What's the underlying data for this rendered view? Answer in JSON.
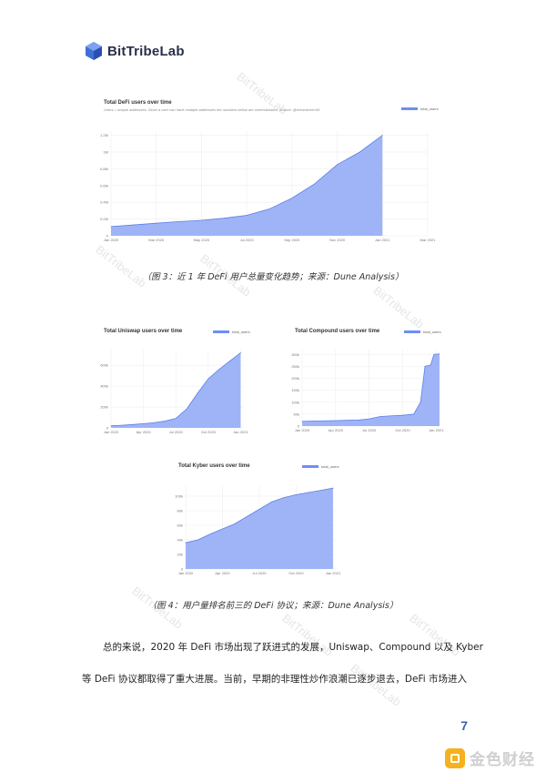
{
  "header": {
    "logo_text": "BitTribeLab"
  },
  "watermark": {
    "text": "BitTribeLab"
  },
  "figure3": {
    "caption": "（图 3：近 1 年 DeFi 用户总量变化趋势；来源：Dune Analysis）"
  },
  "figure4": {
    "caption": "（图 4：用户量排名前三的 DeFi 协议；来源：Dune Analysis）"
  },
  "body_text": {
    "line1": "总的来说，2020 年 DeFi 市场出现了跃进式的发展，Uniswap、Compound 以及 Kyber",
    "line2": "等 DeFi 协议都取得了重大进展。当前，早期的非理性炒作浪潮已逐步退去，DeFi 市场进入"
  },
  "page_number": "7",
  "footer_brand": {
    "text": "金色财经"
  },
  "colors": {
    "area_fill": "#9fb4f7",
    "area_line": "#5b7fe8",
    "grid": "#eeeeee"
  },
  "chart_data": [
    {
      "type": "area",
      "title": "Total DeFi users over time",
      "subtitle": "Users = unique addresses. Since a user can have multiple addresses the numbers below are overestimates. Source: @richardchen39",
      "legend": "total_users",
      "x": [
        "Jan 2020",
        "Feb 2020",
        "Mar 2020",
        "Apr 2020",
        "May 2020",
        "Jun 2020",
        "Jul 2020",
        "Aug 2020",
        "Sep 2020",
        "Oct 2020",
        "Nov 2020",
        "Dec 2020",
        "Jan 2021"
      ],
      "values": [
        110000,
        130000,
        150000,
        170000,
        185000,
        210000,
        245000,
        320000,
        450000,
        620000,
        850000,
        1000000,
        1200000
      ],
      "x_ticks": [
        "Jan 2020",
        "Mar 2020",
        "May 2020",
        "Jul 2020",
        "Sep 2020",
        "Nov 2020",
        "Jan 2021",
        "Mar 2021"
      ],
      "y_ticks": [
        "0",
        "0.2M",
        "0.4M",
        "0.6M",
        "0.8M",
        "1M",
        "1.2M"
      ],
      "ylim": [
        0,
        1250000
      ],
      "xlim_months": [
        0,
        14
      ]
    },
    {
      "type": "area",
      "title": "Total Uniswap users over time",
      "legend": "total_users",
      "x": [
        "Jan 2020",
        "Feb 2020",
        "Mar 2020",
        "Apr 2020",
        "May 2020",
        "Jun 2020",
        "Jul 2020",
        "Aug 2020",
        "Sep 2020",
        "Oct 2020",
        "Nov 2020",
        "Dec 2020",
        "Jan 2021"
      ],
      "values": [
        20000,
        25000,
        32000,
        40000,
        50000,
        65000,
        90000,
        180000,
        330000,
        470000,
        560000,
        640000,
        720000
      ],
      "x_ticks": [
        "Jan 2020",
        "Apr 2020",
        "Jul 2020",
        "Oct 2020",
        "Jan 2021"
      ],
      "y_ticks": [
        "0",
        "200k",
        "400k",
        "600k"
      ],
      "ylim": [
        0,
        750000
      ],
      "xlim_months": [
        0,
        12.3
      ]
    },
    {
      "type": "area",
      "title": "Total Compound users over time",
      "legend": "total_users",
      "x": [
        "Jan 2020",
        "Feb 2020",
        "Mar 2020",
        "Apr 2020",
        "May 2020",
        "Jun 2020",
        "Jul 2020",
        "Aug 2020",
        "Sep 2020",
        "Oct 2020",
        "Oct 2020",
        "Nov 2020",
        "Nov 2020",
        "Dec 2020",
        "Dec 2020",
        "Jan 2021"
      ],
      "values": [
        20000,
        21000,
        22000,
        23000,
        24000,
        25000,
        30000,
        40000,
        43000,
        45000,
        50000,
        100000,
        250000,
        255000,
        300000,
        302000
      ],
      "months": [
        0,
        1,
        2,
        3,
        4,
        5,
        6,
        7,
        8,
        9,
        10,
        10.6,
        11,
        11.5,
        11.8,
        12.3
      ],
      "x_ticks": [
        "Jan 2020",
        "Apr 2020",
        "Jul 2020",
        "Oct 2020",
        "Jan 2021"
      ],
      "y_ticks": [
        "0",
        "50k",
        "100k",
        "150k",
        "200k",
        "250k",
        "300k"
      ],
      "ylim": [
        0,
        320000
      ],
      "xlim_months": [
        0,
        12.3
      ]
    },
    {
      "type": "area",
      "title": "Total Kyber users over time",
      "legend": "total_users",
      "x": [
        "Jan 2020",
        "Feb 2020",
        "Mar 2020",
        "Apr 2020",
        "May 2020",
        "Jun 2020",
        "Jul 2020",
        "Aug 2020",
        "Sep 2020",
        "Oct 2020",
        "Nov 2020",
        "Dec 2020",
        "Jan 2021"
      ],
      "values": [
        36000,
        40000,
        48000,
        55000,
        62000,
        72000,
        82000,
        92000,
        98000,
        102000,
        105000,
        108000,
        111000
      ],
      "x_ticks": [
        "Jan 2020",
        "Apr 2020",
        "Jul 2020",
        "Oct 2020",
        "Jan 2021"
      ],
      "y_ticks": [
        "0",
        "20k",
        "40k",
        "60k",
        "80k",
        "100k"
      ],
      "ylim": [
        0,
        115000
      ],
      "xlim_months": [
        0,
        12.3
      ]
    }
  ]
}
